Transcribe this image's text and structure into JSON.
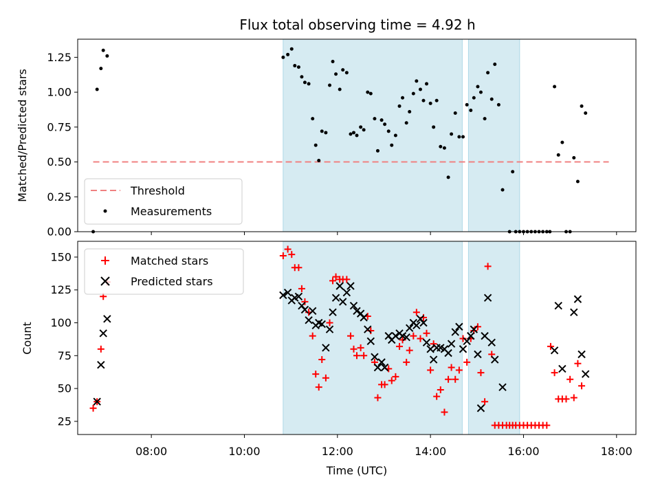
{
  "chart_data": [
    {
      "type": "scatter",
      "title": "Flux total observing time = 4.92 h",
      "xlabel": "",
      "ylabel": "Matched/Predicted stars",
      "xlim": [
        "06:25",
        "18:25"
      ],
      "ylim": [
        0,
        1.38
      ],
      "yticks": [
        0.0,
        0.25,
        0.5,
        0.75,
        1.0,
        1.25
      ],
      "ytick_labels": [
        "0.00",
        "0.25",
        "0.50",
        "0.75",
        "1.00",
        "1.25"
      ],
      "grid": false,
      "legend_position": "lower-left",
      "shaded_intervals": [
        [
          "10:50",
          "14:41"
        ],
        [
          "14:49",
          "15:55"
        ]
      ],
      "shade_color": "#add8e6",
      "threshold": {
        "name": "Threshold",
        "value": 0.5,
        "x_start": "06:45",
        "x_end": "17:50",
        "color": "#f08080"
      },
      "series": [
        {
          "name": "Measurements",
          "color": "#000000",
          "points": [
            [
              "06:45",
              0.0
            ],
            [
              "06:50",
              1.02
            ],
            [
              "06:55",
              1.17
            ],
            [
              "06:58",
              1.3
            ],
            [
              "07:03",
              1.26
            ],
            [
              "10:50",
              1.25
            ],
            [
              "10:56",
              1.27
            ],
            [
              "11:01",
              1.31
            ],
            [
              "11:05",
              1.19
            ],
            [
              "11:10",
              1.18
            ],
            [
              "11:14",
              1.11
            ],
            [
              "11:18",
              1.07
            ],
            [
              "11:23",
              1.06
            ],
            [
              "11:28",
              0.81
            ],
            [
              "11:32",
              0.62
            ],
            [
              "11:36",
              0.51
            ],
            [
              "11:40",
              0.72
            ],
            [
              "11:45",
              0.71
            ],
            [
              "11:50",
              1.05
            ],
            [
              "11:54",
              1.22
            ],
            [
              "11:58",
              1.13
            ],
            [
              "12:03",
              1.02
            ],
            [
              "12:07",
              1.16
            ],
            [
              "12:12",
              1.14
            ],
            [
              "12:17",
              0.7
            ],
            [
              "12:21",
              0.71
            ],
            [
              "12:25",
              0.69
            ],
            [
              "12:30",
              0.75
            ],
            [
              "12:34",
              0.73
            ],
            [
              "12:39",
              1.0
            ],
            [
              "12:43",
              0.99
            ],
            [
              "12:48",
              0.81
            ],
            [
              "12:52",
              0.58
            ],
            [
              "12:57",
              0.8
            ],
            [
              "13:01",
              0.77
            ],
            [
              "13:06",
              0.72
            ],
            [
              "13:10",
              0.62
            ],
            [
              "13:15",
              0.69
            ],
            [
              "13:20",
              0.9
            ],
            [
              "13:24",
              0.96
            ],
            [
              "13:29",
              0.78
            ],
            [
              "13:33",
              0.86
            ],
            [
              "13:38",
              0.99
            ],
            [
              "13:42",
              1.08
            ],
            [
              "13:47",
              1.02
            ],
            [
              "13:51",
              0.94
            ],
            [
              "13:55",
              1.06
            ],
            [
              "14:00",
              0.92
            ],
            [
              "14:04",
              0.75
            ],
            [
              "14:08",
              0.94
            ],
            [
              "14:13",
              0.61
            ],
            [
              "14:18",
              0.6
            ],
            [
              "14:23",
              0.39
            ],
            [
              "14:27",
              0.7
            ],
            [
              "14:32",
              0.85
            ],
            [
              "14:37",
              0.68
            ],
            [
              "14:42",
              0.68
            ],
            [
              "14:47",
              0.91
            ],
            [
              "14:52",
              0.87
            ],
            [
              "14:56",
              0.96
            ],
            [
              "15:01",
              1.04
            ],
            [
              "15:05",
              1.0
            ],
            [
              "15:10",
              0.81
            ],
            [
              "15:14",
              1.14
            ],
            [
              "15:19",
              0.95
            ],
            [
              "15:23",
              1.2
            ],
            [
              "15:28",
              0.91
            ],
            [
              "15:33",
              0.3
            ],
            [
              "15:42",
              0.0
            ],
            [
              "15:46",
              0.43
            ],
            [
              "15:50",
              0.0
            ],
            [
              "15:55",
              0.0
            ],
            [
              "16:00",
              0.0
            ],
            [
              "16:05",
              0.0
            ],
            [
              "16:10",
              0.0
            ],
            [
              "16:15",
              0.0
            ],
            [
              "16:20",
              0.0
            ],
            [
              "16:25",
              0.0
            ],
            [
              "16:30",
              0.0
            ],
            [
              "16:34",
              0.0
            ],
            [
              "16:40",
              1.04
            ],
            [
              "16:45",
              0.55
            ],
            [
              "16:50",
              0.64
            ],
            [
              "16:55",
              0.0
            ],
            [
              "17:00",
              0.0
            ],
            [
              "17:05",
              0.53
            ],
            [
              "17:10",
              0.36
            ],
            [
              "17:15",
              0.9
            ],
            [
              "17:20",
              0.85
            ]
          ]
        }
      ]
    },
    {
      "type": "scatter",
      "title": "",
      "xlabel": "Time (UTC)",
      "ylabel": "Count",
      "xlim": [
        "06:25",
        "18:25"
      ],
      "ylim": [
        15,
        162
      ],
      "yticks": [
        25,
        50,
        75,
        100,
        125,
        150
      ],
      "ytick_labels": [
        "25",
        "50",
        "75",
        "100",
        "125",
        "150"
      ],
      "xticks": [
        "08:00",
        "10:00",
        "12:00",
        "14:00",
        "16:00",
        "18:00"
      ],
      "grid": false,
      "legend_position": "upper-left",
      "shaded_intervals": [
        [
          "10:50",
          "14:41"
        ],
        [
          "14:49",
          "15:55"
        ]
      ],
      "shade_color": "#add8e6",
      "series": [
        {
          "name": "Matched stars",
          "color": "#ff0000",
          "marker": "plus",
          "points": [
            [
              "06:45",
              35
            ],
            [
              "06:50",
              40
            ],
            [
              "06:55",
              80
            ],
            [
              "06:58",
              120
            ],
            [
              "07:03",
              131
            ],
            [
              "10:50",
              151
            ],
            [
              "10:56",
              156
            ],
            [
              "11:01",
              152
            ],
            [
              "11:05",
              142
            ],
            [
              "11:10",
              142
            ],
            [
              "11:14",
              126
            ],
            [
              "11:18",
              116
            ],
            [
              "11:23",
              108
            ],
            [
              "11:28",
              90
            ],
            [
              "11:32",
              61
            ],
            [
              "11:36",
              51
            ],
            [
              "11:40",
              72
            ],
            [
              "11:45",
              58
            ],
            [
              "11:50",
              100
            ],
            [
              "11:54",
              132
            ],
            [
              "11:58",
              135
            ],
            [
              "12:03",
              133
            ],
            [
              "12:07",
              133
            ],
            [
              "12:12",
              133
            ],
            [
              "12:17",
              90
            ],
            [
              "12:21",
              80
            ],
            [
              "12:25",
              75
            ],
            [
              "12:30",
              81
            ],
            [
              "12:34",
              75
            ],
            [
              "12:39",
              105
            ],
            [
              "12:43",
              94
            ],
            [
              "12:48",
              70
            ],
            [
              "12:52",
              43
            ],
            [
              "12:57",
              53
            ],
            [
              "13:01",
              53
            ],
            [
              "13:06",
              65
            ],
            [
              "13:10",
              56
            ],
            [
              "13:15",
              59
            ],
            [
              "13:20",
              82
            ],
            [
              "13:24",
              87
            ],
            [
              "13:29",
              70
            ],
            [
              "13:33",
              79
            ],
            [
              "13:38",
              90
            ],
            [
              "13:42",
              108
            ],
            [
              "13:47",
              88
            ],
            [
              "13:51",
              104
            ],
            [
              "13:55",
              92
            ],
            [
              "14:00",
              64
            ],
            [
              "14:04",
              84
            ],
            [
              "14:08",
              44
            ],
            [
              "14:13",
              49
            ],
            [
              "14:18",
              32
            ],
            [
              "14:23",
              57
            ],
            [
              "14:27",
              66
            ],
            [
              "14:32",
              57
            ],
            [
              "14:37",
              64
            ],
            [
              "14:42",
              88
            ],
            [
              "14:47",
              70
            ],
            [
              "14:52",
              88
            ],
            [
              "14:56",
              94
            ],
            [
              "15:01",
              97
            ],
            [
              "15:05",
              62
            ],
            [
              "15:10",
              40
            ],
            [
              "15:14",
              143
            ],
            [
              "15:19",
              76
            ],
            [
              "15:23",
              22
            ],
            [
              "15:28",
              22
            ],
            [
              "15:33",
              22
            ],
            [
              "15:38",
              22
            ],
            [
              "15:42",
              22
            ],
            [
              "15:46",
              22
            ],
            [
              "15:50",
              22
            ],
            [
              "15:55",
              22
            ],
            [
              "16:00",
              22
            ],
            [
              "16:05",
              22
            ],
            [
              "16:10",
              22
            ],
            [
              "16:15",
              22
            ],
            [
              "16:20",
              22
            ],
            [
              "16:25",
              22
            ],
            [
              "16:30",
              22
            ],
            [
              "16:35",
              82
            ],
            [
              "16:40",
              62
            ],
            [
              "16:45",
              42
            ],
            [
              "16:50",
              42
            ],
            [
              "16:55",
              42
            ],
            [
              "17:00",
              57
            ],
            [
              "17:05",
              43
            ],
            [
              "17:10",
              69
            ],
            [
              "17:15",
              52
            ]
          ]
        },
        {
          "name": "Predicted stars",
          "color": "#000000",
          "marker": "x",
          "points": [
            [
              "06:50",
              40
            ],
            [
              "06:55",
              68
            ],
            [
              "06:58",
              92
            ],
            [
              "07:03",
              103
            ],
            [
              "10:50",
              121
            ],
            [
              "10:56",
              123
            ],
            [
              "11:01",
              117
            ],
            [
              "11:05",
              119
            ],
            [
              "11:10",
              120
            ],
            [
              "11:14",
              113
            ],
            [
              "11:18",
              110
            ],
            [
              "11:23",
              102
            ],
            [
              "11:28",
              109
            ],
            [
              "11:32",
              98
            ],
            [
              "11:36",
              100
            ],
            [
              "11:40",
              99
            ],
            [
              "11:45",
              81
            ],
            [
              "11:50",
              95
            ],
            [
              "11:54",
              108
            ],
            [
              "11:58",
              119
            ],
            [
              "12:03",
              128
            ],
            [
              "12:07",
              116
            ],
            [
              "12:12",
              123
            ],
            [
              "12:17",
              128
            ],
            [
              "12:21",
              113
            ],
            [
              "12:25",
              109
            ],
            [
              "12:30",
              107
            ],
            [
              "12:34",
              104
            ],
            [
              "12:39",
              95
            ],
            [
              "12:43",
              86
            ],
            [
              "12:48",
              74
            ],
            [
              "12:52",
              66
            ],
            [
              "12:57",
              70
            ],
            [
              "13:01",
              66
            ],
            [
              "13:06",
              90
            ],
            [
              "13:10",
              87
            ],
            [
              "13:15",
              90
            ],
            [
              "13:20",
              92
            ],
            [
              "13:24",
              90
            ],
            [
              "13:29",
              89
            ],
            [
              "13:33",
              96
            ],
            [
              "13:38",
              100
            ],
            [
              "13:42",
              98
            ],
            [
              "13:47",
              103
            ],
            [
              "13:51",
              100
            ],
            [
              "13:55",
              85
            ],
            [
              "14:00",
              80
            ],
            [
              "14:04",
              72
            ],
            [
              "14:08",
              81
            ],
            [
              "14:13",
              81
            ],
            [
              "14:18",
              80
            ],
            [
              "14:23",
              77
            ],
            [
              "14:27",
              84
            ],
            [
              "14:32",
              93
            ],
            [
              "14:37",
              97
            ],
            [
              "14:42",
              80
            ],
            [
              "14:47",
              86
            ],
            [
              "14:52",
              90
            ],
            [
              "14:56",
              95
            ],
            [
              "15:01",
              76
            ],
            [
              "15:05",
              35
            ],
            [
              "15:10",
              90
            ],
            [
              "15:14",
              119
            ],
            [
              "15:19",
              85
            ],
            [
              "15:23",
              72
            ],
            [
              "15:33",
              51
            ],
            [
              "16:40",
              79
            ],
            [
              "16:45",
              113
            ],
            [
              "16:50",
              65
            ],
            [
              "17:05",
              108
            ],
            [
              "17:10",
              118
            ],
            [
              "17:15",
              76
            ],
            [
              "17:20",
              61
            ]
          ]
        }
      ]
    }
  ]
}
